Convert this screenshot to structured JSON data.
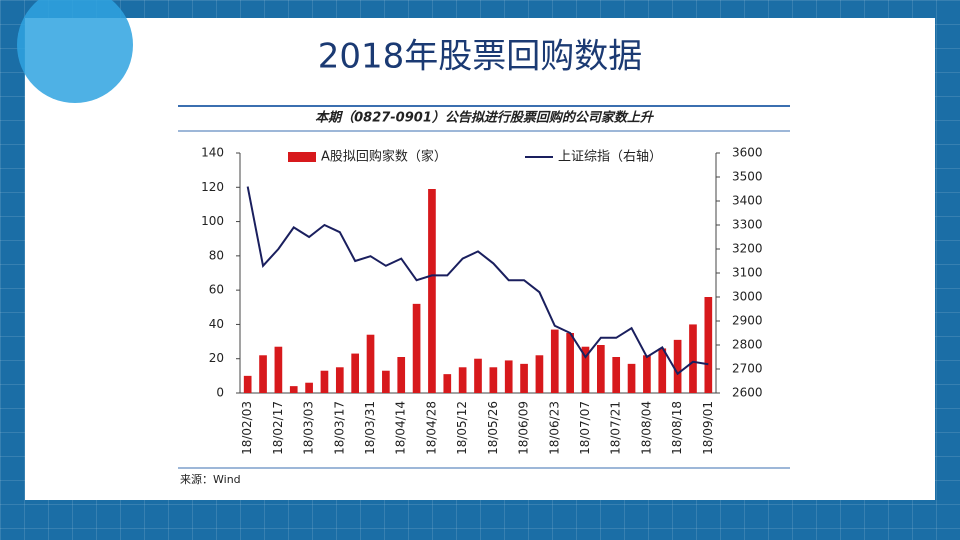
{
  "title": "2018年股票回购数据",
  "chart_data": {
    "type": "bar_line",
    "title": "本期（0827-0901）公告拟进行股票回购的公司家数上升",
    "source": "来源：Wind",
    "categories": [
      "18/02/03",
      null,
      "18/02/17",
      null,
      "18/03/03",
      null,
      "18/03/17",
      null,
      "18/03/31",
      null,
      "18/04/14",
      null,
      "18/04/28",
      null,
      "18/05/12",
      null,
      "18/05/26",
      null,
      "18/06/09",
      null,
      "18/06/23",
      null,
      "18/07/07",
      null,
      "18/07/21",
      null,
      "18/08/04",
      null,
      "18/08/18",
      null,
      "18/09/01"
    ],
    "series": [
      {
        "name": "A股拟回购家数（家）",
        "color": "#d7191c",
        "type": "bar",
        "values": [
          10,
          22,
          27,
          4,
          6,
          13,
          15,
          23,
          34,
          13,
          21,
          52,
          119,
          11,
          15,
          20,
          15,
          19,
          17,
          22,
          37,
          35,
          27,
          28,
          21,
          17,
          22,
          26,
          31,
          40,
          56
        ]
      },
      {
        "name": "上证综指（右轴）",
        "color": "#1a1f5e",
        "type": "line",
        "axis": "y2",
        "values": [
          3460,
          3130,
          3200,
          3290,
          3250,
          3300,
          3270,
          3150,
          3170,
          3130,
          3160,
          3070,
          3090,
          3090,
          3160,
          3190,
          3140,
          3070,
          3070,
          3020,
          2880,
          2850,
          2750,
          2830,
          2830,
          2870,
          2750,
          2790,
          2680,
          2730,
          2720
        ]
      }
    ],
    "ylim": [
      0,
      140
    ],
    "yticks": [
      0,
      20,
      40,
      60,
      80,
      100,
      120,
      140
    ],
    "y2lim": [
      2600,
      3600
    ],
    "y2ticks": [
      2600,
      2700,
      2800,
      2900,
      3000,
      3100,
      3200,
      3300,
      3400,
      3500,
      3600
    ]
  }
}
